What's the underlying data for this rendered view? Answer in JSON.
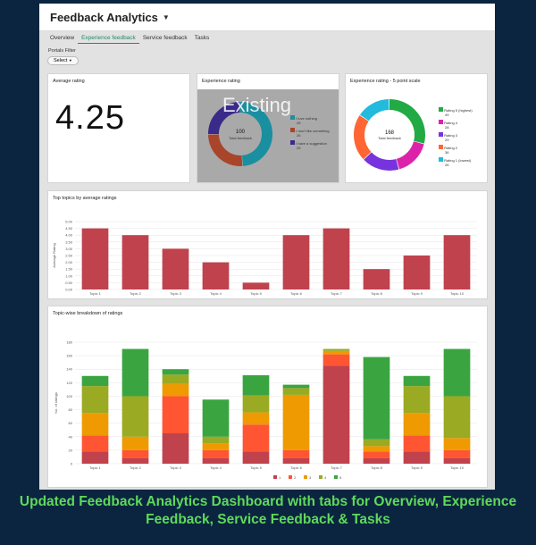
{
  "app": {
    "title": "Feedback Analytics"
  },
  "tabs": [
    {
      "label": "Overview"
    },
    {
      "label": "Experience feedback"
    },
    {
      "label": "Service feedback"
    },
    {
      "label": "Tasks"
    }
  ],
  "filter": {
    "label": "Portals Filter",
    "value": "Select"
  },
  "cards": {
    "average": {
      "title": "Average rating",
      "value": "4.25"
    },
    "experience": {
      "title": "Experience rating",
      "watermark": "Existing",
      "center_value": "100",
      "center_label": "Total feedback",
      "legend": [
        {
          "label": "I love nothing",
          "value": "49",
          "color": "#1a8fa0"
        },
        {
          "label": "I don't like something",
          "value": "26",
          "color": "#a8452a"
        },
        {
          "label": "I have a suggestion",
          "value": "25",
          "color": "#3a2a8a"
        }
      ]
    },
    "five_point": {
      "title": "Experience rating - 5 point scale",
      "center_value": "168",
      "center_label": "Total feedback",
      "legend": [
        {
          "label": "Rating 5 (highest)",
          "value": "49",
          "color": "#22aa44"
        },
        {
          "label": "Rating 4",
          "value": "28",
          "color": "#dd22aa"
        },
        {
          "label": "Rating 3",
          "value": "29",
          "color": "#7733dd"
        },
        {
          "label": "Rating 2",
          "value": "36",
          "color": "#ff6633"
        },
        {
          "label": "Rating 1 (lowest)",
          "value": "26",
          "color": "#22bbdd"
        }
      ]
    }
  },
  "chart_data": [
    {
      "type": "bar",
      "title": "Top topics by average ratings",
      "ylabel": "Average Rating",
      "categories": [
        "Topic 1",
        "Topic 2",
        "Topic 3",
        "Topic 4",
        "Topic 5",
        "Topic 6",
        "Topic 7",
        "Topic 8",
        "Topic 9",
        "Topic 10"
      ],
      "values": [
        4.5,
        4.0,
        3.0,
        2.0,
        0.5,
        4.0,
        4.5,
        1.5,
        2.5,
        4.0
      ],
      "yticks": [
        "0.00",
        "0.50",
        "1.00",
        "1.50",
        "2.00",
        "2.50",
        "3.00",
        "3.50",
        "4.00",
        "4.50",
        "5.00"
      ],
      "ylim": [
        0,
        5
      ],
      "color": "#c0424d"
    },
    {
      "type": "bar",
      "stacked": true,
      "title": "Topic-wise breakdown of ratings",
      "ylabel": "No. of ratings",
      "categories": [
        "Topic 1",
        "Topic 2",
        "Topic 3",
        "Topic 4",
        "Topic 5",
        "Topic 6",
        "Topic 7",
        "Topic 8",
        "Topic 9",
        "Topic 10"
      ],
      "yticks": [
        "0",
        "20",
        "40",
        "60",
        "80",
        "100",
        "120",
        "140",
        "160",
        "180"
      ],
      "ylim": [
        0,
        180
      ],
      "series": [
        {
          "name": "1",
          "color": "#c0424d",
          "values": [
            18,
            8,
            45,
            8,
            18,
            8,
            145,
            8,
            18,
            8
          ]
        },
        {
          "name": "2",
          "color": "#ff5533",
          "values": [
            24,
            12,
            55,
            12,
            40,
            12,
            17,
            10,
            24,
            12
          ]
        },
        {
          "name": "3",
          "color": "#ee9a00",
          "values": [
            33,
            20,
            18,
            10,
            18,
            82,
            5,
            8,
            33,
            18
          ]
        },
        {
          "name": "4",
          "color": "#9aaa22",
          "values": [
            40,
            60,
            14,
            10,
            25,
            10,
            3,
            10,
            40,
            62
          ]
        },
        {
          "name": "5",
          "color": "#3aa540",
          "values": [
            15,
            70,
            8,
            55,
            30,
            5,
            0,
            122,
            15,
            70
          ]
        }
      ]
    }
  ],
  "caption": "Updated Feedback Analytics Dashboard with tabs for Overview, Experience Feedback, Service Feedback & Tasks"
}
